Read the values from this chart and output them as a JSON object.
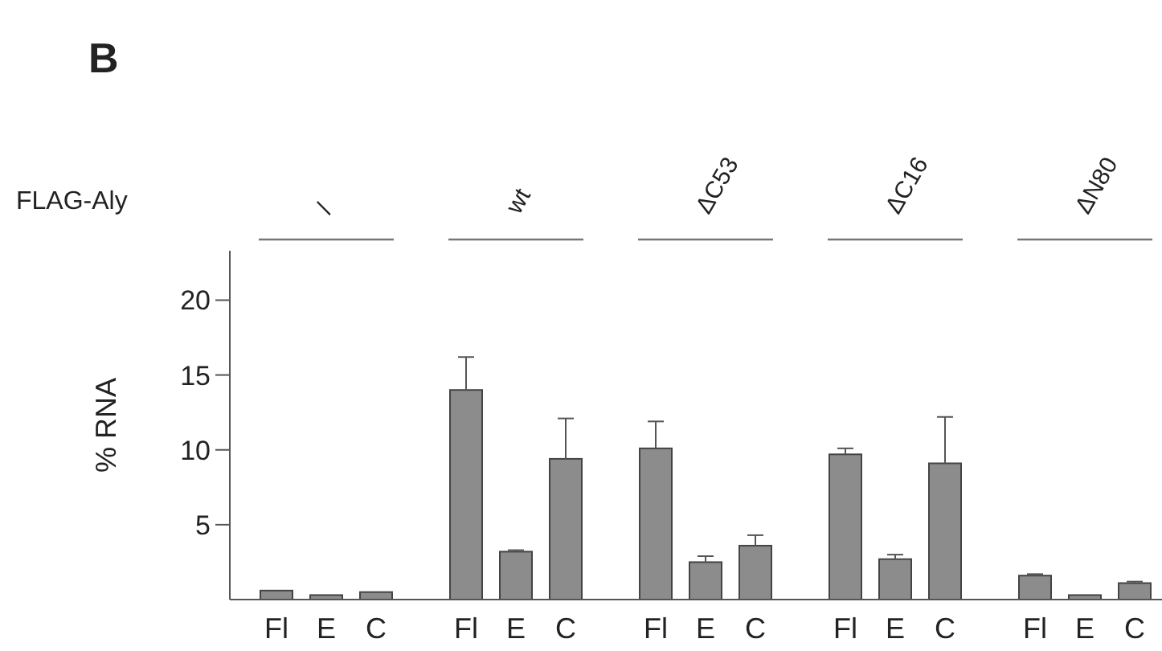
{
  "chart_data": {
    "type": "bar",
    "title": "B",
    "ylabel": "% RNA",
    "annotations": [
      "FLAG-Aly",
      "/",
      "wt",
      "ΔC53",
      "ΔC16",
      "ΔN80"
    ],
    "categories": [
      "Fl",
      "E",
      "C",
      "Fl",
      "E",
      "C",
      "Fl",
      "E",
      "C",
      "Fl",
      "E",
      "C",
      "Fl",
      "E",
      "C"
    ],
    "values": [
      0.6,
      0.3,
      0.5,
      14.0,
      3.2,
      9.4,
      10.1,
      2.5,
      3.6,
      9.7,
      2.7,
      9.1,
      1.6,
      0.3,
      1.1
    ],
    "errors": [
      null,
      null,
      null,
      [
        14.0,
        16.2
      ],
      [
        3.2,
        3.3
      ],
      [
        9.4,
        12.1
      ],
      [
        10.1,
        11.9
      ],
      [
        2.5,
        2.9
      ],
      [
        3.6,
        4.3
      ],
      [
        9.7,
        10.1
      ],
      [
        2.7,
        3.0
      ],
      [
        9.1,
        12.2
      ],
      [
        1.6,
        1.7
      ],
      null,
      [
        1.1,
        1.2
      ]
    ],
    "color": "#8c8c8c",
    "ylim": [
      0,
      23.3
    ],
    "yticks": [
      5,
      10,
      15,
      20
    ],
    "grid": false
  }
}
